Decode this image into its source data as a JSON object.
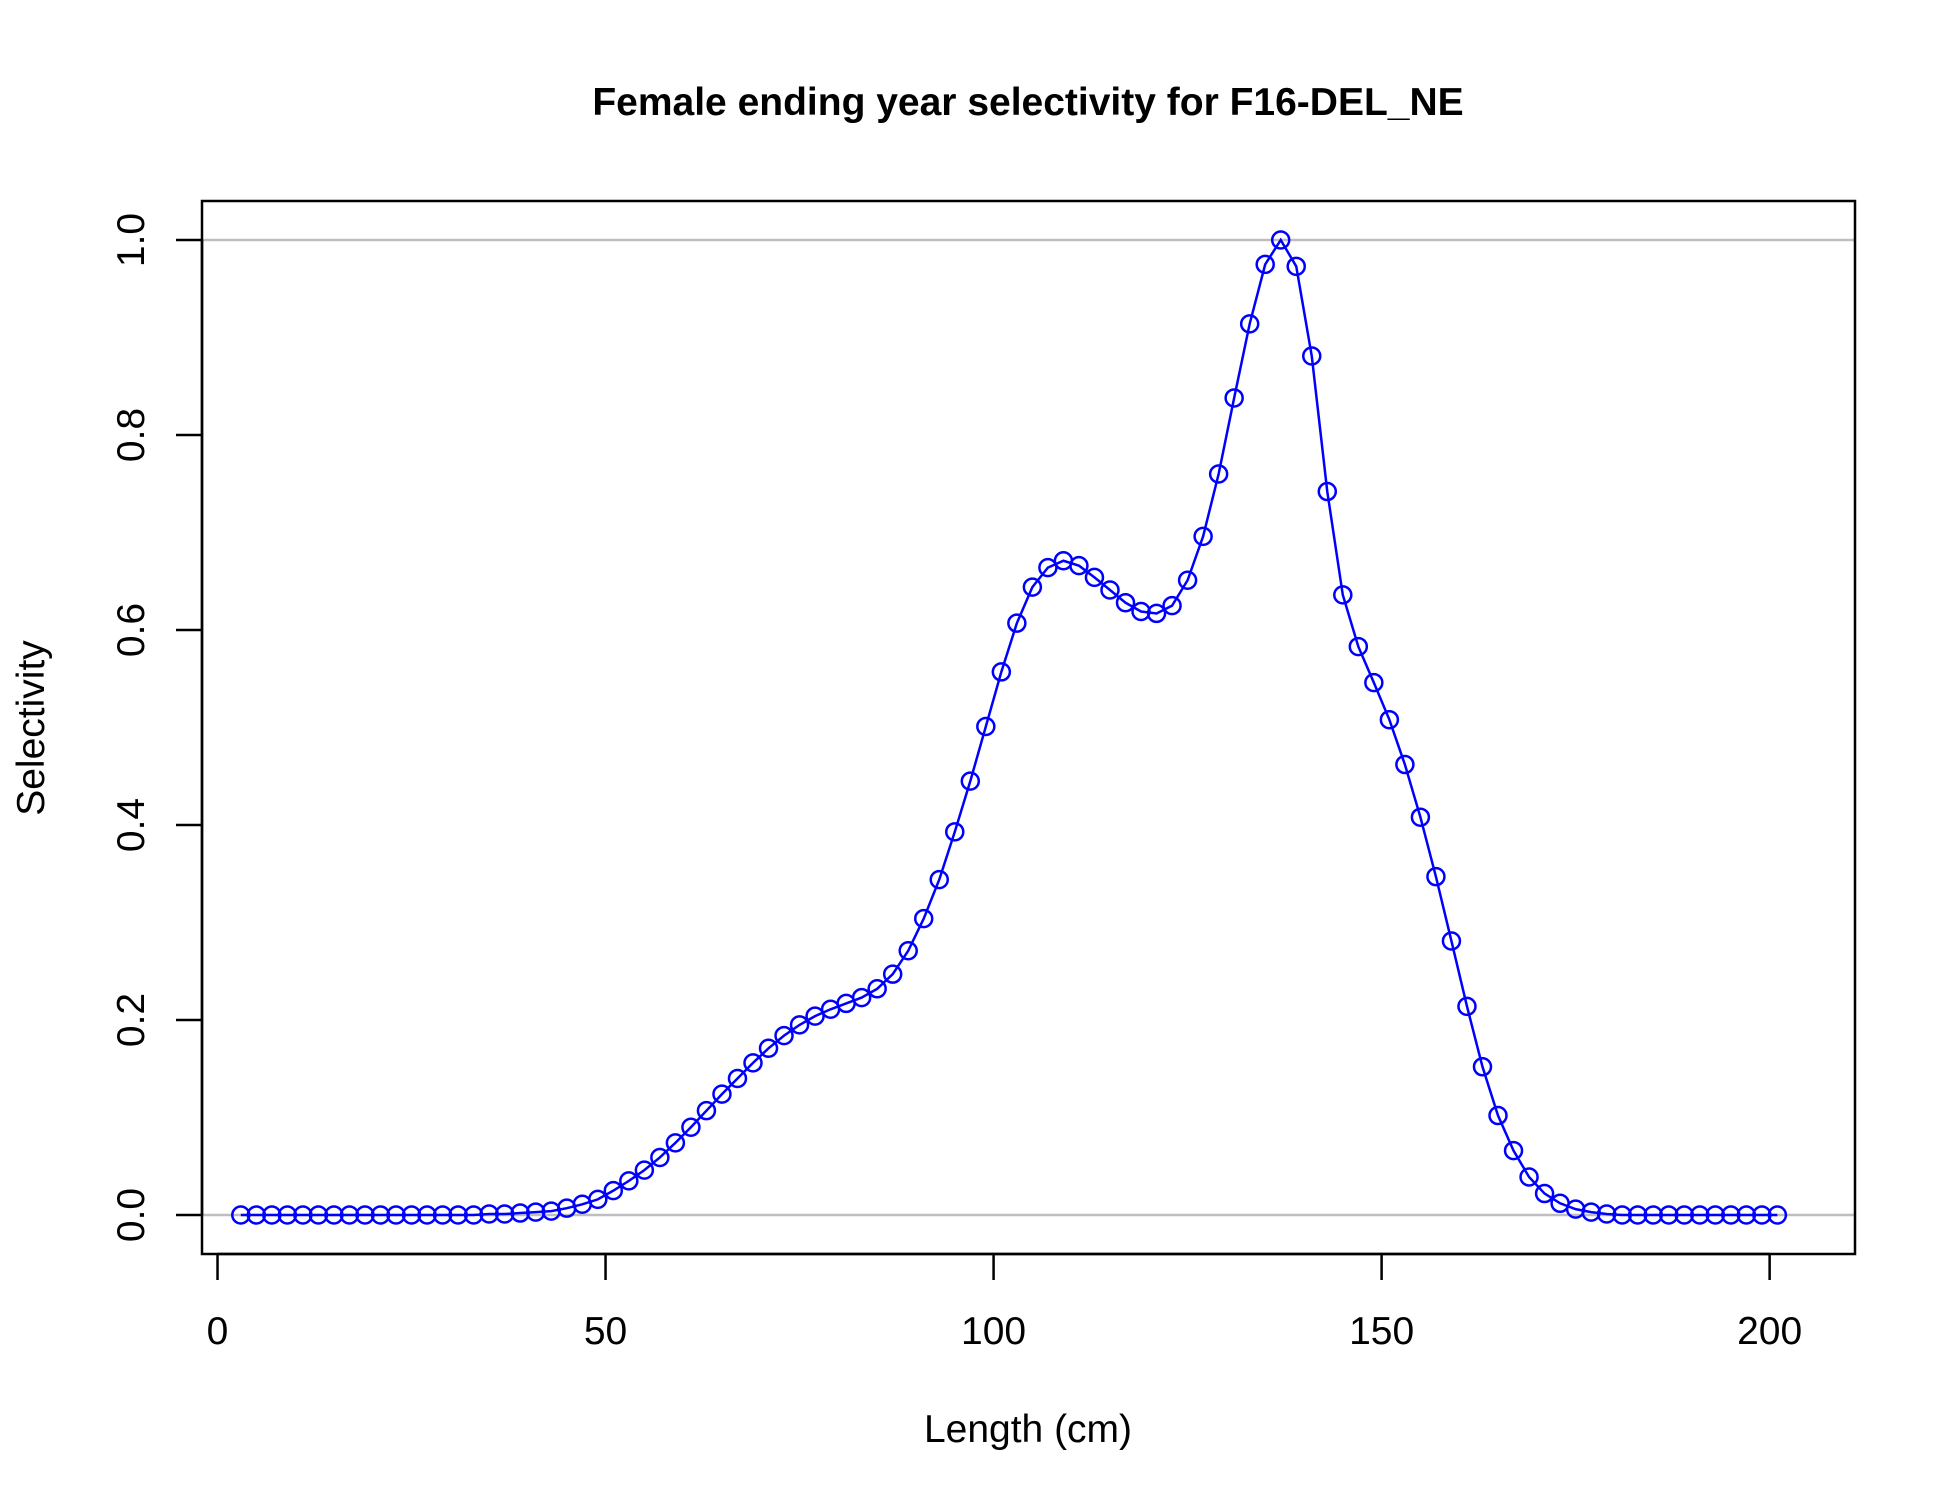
{
  "chart_data": {
    "type": "line",
    "title": "Female ending year selectivity for F16-DEL_NE",
    "xlabel": "Length (cm)",
    "ylabel": "Selectivity",
    "xlim": [
      -2,
      211
    ],
    "ylim": [
      -0.04,
      1.04
    ],
    "xticks": [
      0,
      50,
      100,
      150,
      200
    ],
    "xtick_labels": [
      "0",
      "50",
      "100",
      "150",
      "200"
    ],
    "yticks": [
      0.0,
      0.2,
      0.4,
      0.6,
      0.8,
      1.0
    ],
    "ytick_labels": [
      "0.0",
      "0.2",
      "0.4",
      "0.6",
      "0.8",
      "1.0"
    ],
    "reference_lines": [
      0,
      1
    ],
    "grid": false,
    "marker": "open-circle",
    "colors": {
      "series": "#0000ff",
      "reference_line": "#bebebe",
      "axes": "#000000"
    },
    "series": [
      {
        "x": [
          3,
          5,
          7,
          9,
          11,
          13,
          15,
          17,
          19,
          21,
          23,
          25,
          27,
          29,
          31,
          33,
          35,
          37,
          39,
          41,
          43,
          45,
          47,
          49,
          51,
          53,
          55,
          57,
          59,
          61,
          63,
          65,
          67,
          69,
          71,
          73,
          75,
          77,
          79,
          81,
          83,
          85,
          87,
          89,
          91,
          93,
          95,
          97,
          99,
          101,
          103,
          105,
          107,
          109,
          111,
          113,
          115,
          117,
          119,
          121,
          123,
          125,
          127,
          129,
          131,
          133,
          135,
          137,
          139,
          141,
          143,
          145,
          147,
          149,
          151,
          153,
          155,
          157,
          159,
          161,
          163,
          165,
          167,
          169,
          171,
          173,
          175,
          177,
          179,
          181,
          183,
          185,
          187,
          189,
          191,
          193,
          195,
          197,
          199,
          201
        ],
        "values": [
          0.0,
          0.0,
          0.0,
          0.0,
          0.0,
          0.0,
          0.0,
          0.0,
          0.0,
          0.0,
          0.0,
          0.0,
          0.0,
          0.0,
          0.0,
          0.0,
          0.001,
          0.001,
          0.002,
          0.003,
          0.004,
          0.007,
          0.011,
          0.016,
          0.025,
          0.035,
          0.046,
          0.059,
          0.074,
          0.09,
          0.107,
          0.124,
          0.14,
          0.156,
          0.171,
          0.184,
          0.195,
          0.204,
          0.211,
          0.217,
          0.223,
          0.232,
          0.247,
          0.271,
          0.304,
          0.344,
          0.393,
          0.445,
          0.501,
          0.557,
          0.607,
          0.644,
          0.664,
          0.671,
          0.666,
          0.654,
          0.641,
          0.628,
          0.619,
          0.617,
          0.625,
          0.651,
          0.696,
          0.76,
          0.838,
          0.914,
          0.975,
          1.0,
          0.973,
          0.881,
          0.742,
          0.636,
          0.583,
          0.546,
          0.508,
          0.462,
          0.408,
          0.347,
          0.281,
          0.214,
          0.152,
          0.102,
          0.066,
          0.039,
          0.022,
          0.012,
          0.006,
          0.003,
          0.001,
          0.0,
          0.0,
          0.0,
          0.0,
          0.0,
          0.0,
          0.0,
          0.0,
          0.0,
          0.0,
          0.0
        ]
      }
    ]
  }
}
